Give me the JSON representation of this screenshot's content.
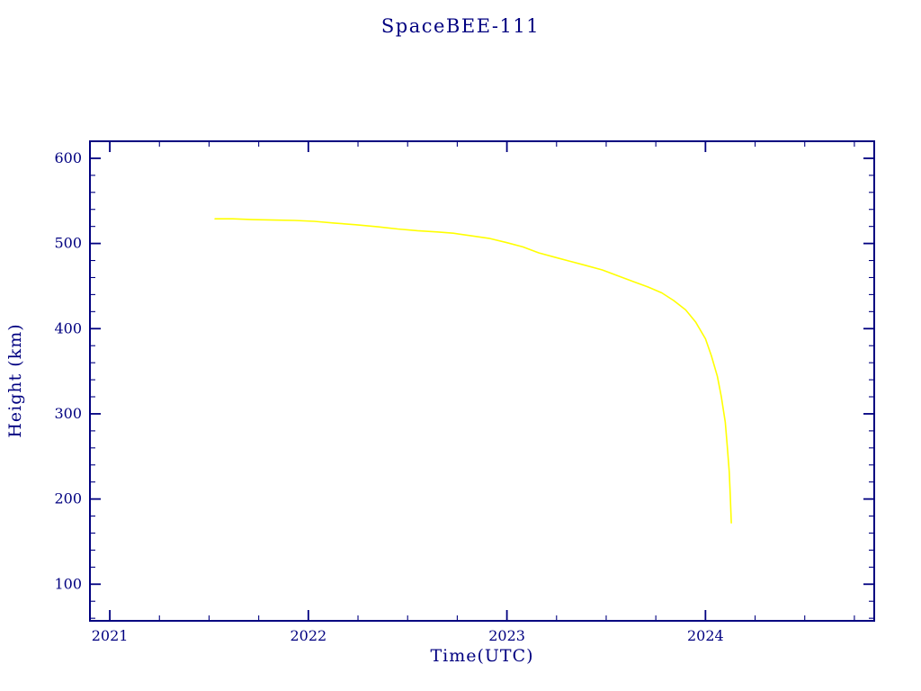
{
  "chart_data": {
    "type": "line",
    "title": "SpaceBEE-111",
    "xlabel": "Time(UTC)",
    "ylabel": "Height (km)",
    "xlim": [
      2020.9,
      2024.85
    ],
    "ylim": [
      57,
      620
    ],
    "xticks": {
      "values": [
        2021,
        2022,
        2023,
        2024
      ],
      "labels": [
        "2021",
        "2022",
        "2023",
        "2024"
      ],
      "minor_interval": 0.25
    },
    "yticks": {
      "values": [
        100,
        200,
        300,
        400,
        500,
        600
      ],
      "labels": [
        "100",
        "200",
        "300",
        "400",
        "500",
        "600"
      ],
      "minor_interval": 20
    },
    "grid": false,
    "legend": "none",
    "colors": {
      "line": "#ffff00",
      "axis": "#000080",
      "background": "#ffffff"
    },
    "series": [
      {
        "name": "height_km",
        "points": [
          [
            2021.53,
            529
          ],
          [
            2021.62,
            529
          ],
          [
            2021.72,
            528
          ],
          [
            2021.83,
            527.5
          ],
          [
            2021.93,
            527
          ],
          [
            2022.03,
            526
          ],
          [
            2022.13,
            524
          ],
          [
            2022.24,
            522
          ],
          [
            2022.35,
            519.5
          ],
          [
            2022.45,
            517
          ],
          [
            2022.55,
            515
          ],
          [
            2022.65,
            513.5
          ],
          [
            2022.73,
            512
          ],
          [
            2022.82,
            509
          ],
          [
            2022.91,
            506
          ],
          [
            2023.0,
            501
          ],
          [
            2023.08,
            496
          ],
          [
            2023.16,
            489
          ],
          [
            2023.24,
            484
          ],
          [
            2023.32,
            479
          ],
          [
            2023.4,
            474
          ],
          [
            2023.48,
            469
          ],
          [
            2023.56,
            462
          ],
          [
            2023.64,
            455
          ],
          [
            2023.71,
            449
          ],
          [
            2023.78,
            442
          ],
          [
            2023.84,
            433
          ],
          [
            2023.9,
            422
          ],
          [
            2023.95,
            408
          ],
          [
            2024.0,
            388
          ],
          [
            2024.03,
            368
          ],
          [
            2024.06,
            344
          ],
          [
            2024.08,
            320
          ],
          [
            2024.1,
            290
          ],
          [
            2024.11,
            262
          ],
          [
            2024.12,
            232
          ],
          [
            2024.125,
            205
          ],
          [
            2024.13,
            172
          ]
        ]
      }
    ]
  }
}
